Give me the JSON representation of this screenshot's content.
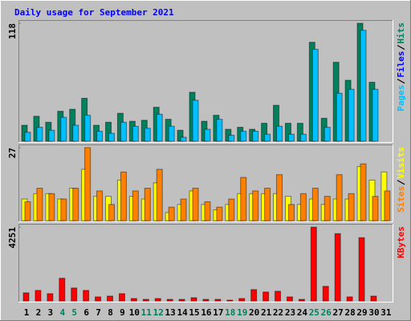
{
  "chart_data": {
    "type": "bar",
    "title": "Daily usage for September 2021",
    "categories": [
      "1",
      "2",
      "3",
      "4",
      "5",
      "6",
      "7",
      "8",
      "9",
      "10",
      "11",
      "12",
      "13",
      "14",
      "15",
      "16",
      "17",
      "18",
      "19",
      "20",
      "21",
      "22",
      "23",
      "24",
      "25",
      "26",
      "27",
      "28",
      "29",
      "30",
      "31"
    ],
    "category_colors": [
      "#000000",
      "#000000",
      "#000000",
      "#00805c",
      "#00805c",
      "#000000",
      "#000000",
      "#000000",
      "#000000",
      "#000000",
      "#00805c",
      "#00805c",
      "#000000",
      "#000000",
      "#000000",
      "#000000",
      "#000000",
      "#00805c",
      "#00805c",
      "#000000",
      "#000000",
      "#000000",
      "#000000",
      "#000000",
      "#00805c",
      "#00805c",
      "#000000",
      "#000000",
      "#000000",
      "#000000",
      "#000000"
    ],
    "panels": [
      {
        "ylim": [
          0,
          118
        ],
        "yticks": [
          118
        ],
        "series": [
          {
            "name": "Hits",
            "color": "#00805c",
            "values": [
              16,
              25,
              19,
              30,
              32,
              43,
              16,
              19,
              28,
              20,
              21,
              34,
              22,
              11,
              49,
              20,
              26,
              12,
              14,
              12,
              18,
              36,
              18,
              18,
              99,
              23,
              79,
              61,
              118,
              59,
              0
            ]
          },
          {
            "name": "Pages",
            "color": "#00c0ff",
            "values": [
              9,
              14,
              11,
              24,
              16,
              26,
              10,
              8,
              19,
              15,
              13,
              27,
              15,
              4,
              41,
              12,
              22,
              6,
              10,
              10,
              7,
              15,
              7,
              7,
              92,
              14,
              48,
              52,
              111,
              52,
              0
            ]
          }
        ],
        "extra_legend": [
          {
            "name": "Files",
            "color": "#0000ff"
          }
        ]
      },
      {
        "ylim": [
          0,
          27
        ],
        "yticks": [
          27
        ],
        "series": [
          {
            "name": "Visits",
            "color": "#ffff00",
            "values": [
              8,
              10,
              10,
              8,
              12,
              19,
              9,
              9,
              15,
              9,
              8,
              14,
              3,
              6,
              11,
              6,
              4,
              6,
              10,
              10,
              10,
              10,
              9,
              6,
              8,
              6,
              8,
              8,
              20,
              15,
              18
            ]
          },
          {
            "name": "Sites",
            "color": "#ff8000",
            "values": [
              7,
              12,
              10,
              8,
              12,
              27,
              11,
              6,
              18,
              11,
              12,
              19,
              5,
              8,
              12,
              7,
              5,
              8,
              16,
              11,
              12,
              17,
              6,
              10,
              12,
              9,
              17,
              10,
              21,
              9,
              11
            ]
          }
        ]
      },
      {
        "ylim": [
          0,
          4251
        ],
        "yticks": [
          4251
        ],
        "series": [
          {
            "name": "KBytes",
            "color": "#ff0000",
            "values": [
              467,
              607,
              420,
              1308,
              747,
              607,
              234,
              280,
              420,
              140,
              93,
              140,
              93,
              93,
              187,
              93,
              93,
              47,
              140,
              654,
              514,
              560,
              234,
              93,
              4251,
              841,
              3877,
              234,
              3643,
              280,
              0
            ]
          }
        ]
      }
    ]
  }
}
